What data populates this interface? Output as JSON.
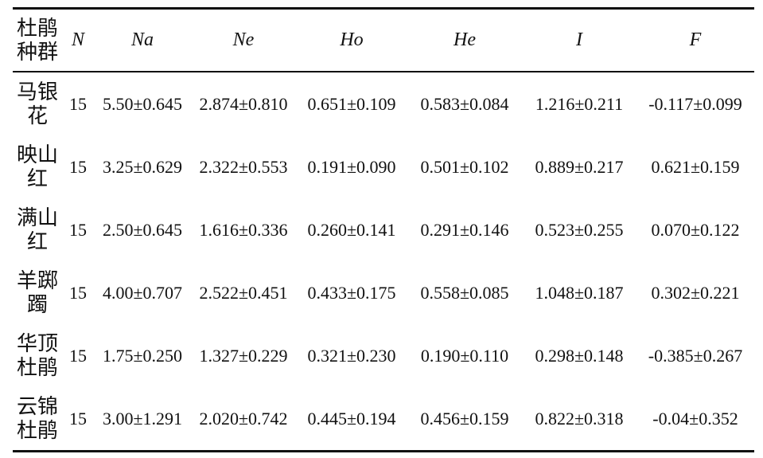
{
  "table": {
    "header": [
      "杜鹃种群",
      "N",
      "Na",
      "Ne",
      "Ho",
      "He",
      "I",
      "F"
    ],
    "rows": [
      [
        "马银花",
        "15",
        "5.50±0.645",
        "2.874±0.810",
        "0.651±0.109",
        "0.583±0.084",
        "1.216±0.211",
        "-0.117±0.099"
      ],
      [
        "映山红",
        "15",
        "3.25±0.629",
        "2.322±0.553",
        "0.191±0.090",
        "0.501±0.102",
        "0.889±0.217",
        "0.621±0.159"
      ],
      [
        "满山红",
        "15",
        "2.50±0.645",
        "1.616±0.336",
        "0.260±0.141",
        "0.291±0.146",
        "0.523±0.255",
        "0.070±0.122"
      ],
      [
        "羊踯躅",
        "15",
        "4.00±0.707",
        "2.522±0.451",
        "0.433±0.175",
        "0.558±0.085",
        "1.048±0.187",
        "0.302±0.221"
      ],
      [
        "华顶杜鹃",
        "15",
        "1.75±0.250",
        "1.327±0.229",
        "0.321±0.230",
        "0.190±0.110",
        "0.298±0.148",
        "-0.385±0.267"
      ],
      [
        "云锦杜鹃",
        "15",
        "3.00±1.291",
        "2.020±0.742",
        "0.445±0.194",
        "0.456±0.159",
        "0.822±0.318",
        "-0.04±0.352"
      ]
    ]
  }
}
